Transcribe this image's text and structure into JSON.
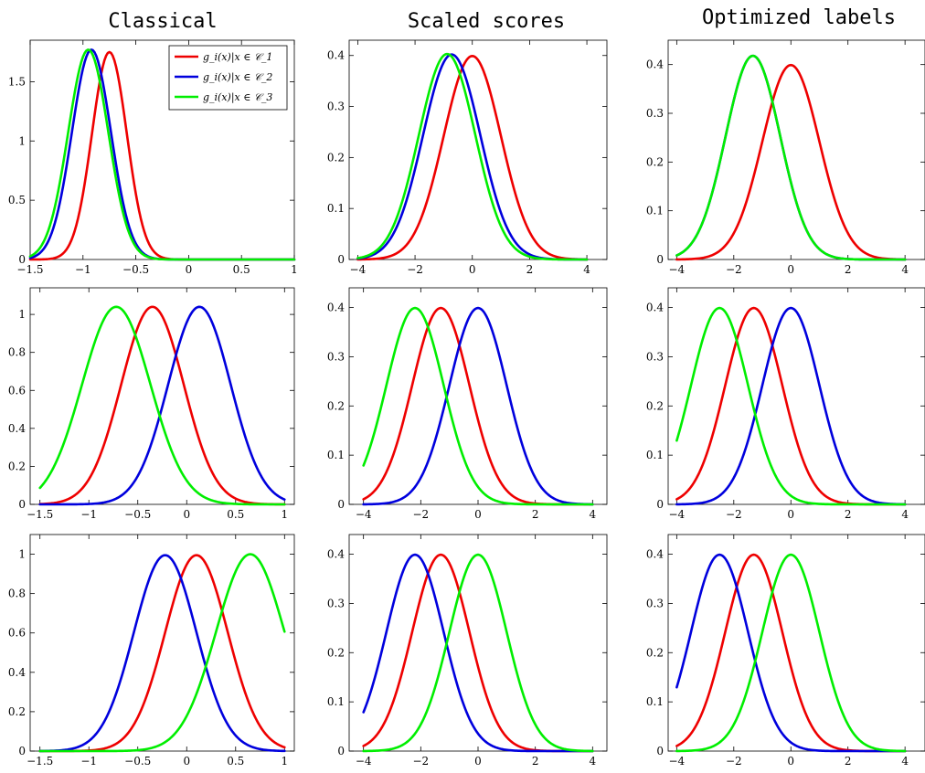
{
  "columns": [
    "Classical",
    "Scaled scores",
    "Optimized labels"
  ],
  "colors": {
    "s1": "#ee0000",
    "s2": "#0000dd",
    "s3": "#00ee00"
  },
  "legend": {
    "placement": "top-right",
    "entries": [
      "g_i(x)|x ∈ 𝒞_1",
      "g_i(x)|x ∈ 𝒞_2",
      "g_i(x)|x ∈ 𝒞_3"
    ]
  },
  "chart_data": [
    {
      "type": "line",
      "row": 0,
      "col": 0,
      "xlim": [
        -1.5,
        1
      ],
      "ylim": [
        0,
        1.85
      ],
      "grid": false,
      "xticks": [
        -1.5,
        -1,
        -0.5,
        0,
        0.5,
        1
      ],
      "xtick_labels": [
        "−1.5",
        "−1",
        "−0.5",
        "0",
        "0.5",
        "1"
      ],
      "yticks": [
        0,
        0.5,
        1,
        1.5
      ],
      "ytick_labels": [
        "0",
        "0.5",
        "1",
        "1.5"
      ],
      "series": [
        {
          "color_key": "s1",
          "curve": "gaussian",
          "mean": -0.75,
          "sd": 0.165,
          "peak": 1.75
        },
        {
          "color_key": "s2",
          "curve": "gaussian",
          "mean": -0.92,
          "sd": 0.185,
          "peak": 1.77
        },
        {
          "color_key": "s3",
          "curve": "gaussian",
          "mean": -0.95,
          "sd": 0.19,
          "peak": 1.77
        }
      ]
    },
    {
      "type": "line",
      "row": 0,
      "col": 1,
      "xlim": [
        -4.3,
        4.7
      ],
      "ylim": [
        0,
        0.43
      ],
      "grid": false,
      "xticks": [
        -4,
        -2,
        0,
        2,
        4
      ],
      "xtick_labels": [
        "−4",
        "−2",
        "0",
        "2",
        "4"
      ],
      "yticks": [
        0,
        0.1,
        0.2,
        0.3,
        0.4
      ],
      "ytick_labels": [
        "0",
        "0.1",
        "0.2",
        "0.3",
        "0.4"
      ],
      "series": [
        {
          "color_key": "s1",
          "curve": "gaussian",
          "mean": 0,
          "sd": 1,
          "peak": 0.399
        },
        {
          "color_key": "s2",
          "curve": "gaussian",
          "mean": -0.72,
          "sd": 1,
          "peak": 0.402
        },
        {
          "color_key": "s3",
          "curve": "gaussian",
          "mean": -0.88,
          "sd": 0.985,
          "peak": 0.403
        }
      ]
    },
    {
      "type": "line",
      "row": 0,
      "col": 2,
      "xlim": [
        -4.3,
        4.7
      ],
      "ylim": [
        0,
        0.45
      ],
      "grid": false,
      "xticks": [
        -4,
        -2,
        0,
        2,
        4
      ],
      "xtick_labels": [
        "−4",
        "−2",
        "0",
        "2",
        "4"
      ],
      "yticks": [
        0,
        0.1,
        0.2,
        0.3,
        0.4
      ],
      "ytick_labels": [
        "0",
        "0.1",
        "0.2",
        "0.3",
        "0.4"
      ],
      "series": [
        {
          "color_key": "s1",
          "curve": "gaussian",
          "mean": 0,
          "sd": 1,
          "peak": 0.399
        },
        {
          "color_key": "s2",
          "curve": "gaussian",
          "mean": -1.33,
          "sd": 0.955,
          "peak": 0.418
        },
        {
          "color_key": "s3",
          "curve": "gaussian",
          "mean": -1.33,
          "sd": 0.955,
          "peak": 0.418
        }
      ]
    },
    {
      "type": "line",
      "row": 1,
      "col": 0,
      "xlim": [
        -1.6,
        1.1
      ],
      "ylim": [
        0,
        1.14
      ],
      "grid": false,
      "xticks": [
        -1.5,
        -1,
        -0.5,
        0,
        0.5,
        1
      ],
      "xtick_labels": [
        "−1.5",
        "−1",
        "−0.5",
        "0",
        "0.5",
        "1"
      ],
      "yticks": [
        0,
        0.2,
        0.4,
        0.6,
        0.8,
        1
      ],
      "ytick_labels": [
        "0",
        "0.2",
        "0.4",
        "0.6",
        "0.8",
        "1"
      ],
      "series": [
        {
          "color_key": "s1",
          "curve": "gaussian",
          "mean": -0.35,
          "sd": 0.32,
          "peak": 1.04
        },
        {
          "color_key": "s2",
          "curve": "gaussian",
          "mean": 0.13,
          "sd": 0.32,
          "peak": 1.04
        },
        {
          "color_key": "s3",
          "curve": "gaussian",
          "mean": -0.72,
          "sd": 0.35,
          "peak": 1.04
        }
      ]
    },
    {
      "type": "line",
      "row": 1,
      "col": 1,
      "xlim": [
        -4.5,
        4.5
      ],
      "ylim": [
        0,
        0.44
      ],
      "grid": false,
      "xticks": [
        -4,
        -2,
        0,
        2,
        4
      ],
      "xtick_labels": [
        "−4",
        "−2",
        "0",
        "2",
        "4"
      ],
      "yticks": [
        0,
        0.1,
        0.2,
        0.3,
        0.4
      ],
      "ytick_labels": [
        "0",
        "0.1",
        "0.2",
        "0.3",
        "0.4"
      ],
      "series": [
        {
          "color_key": "s1",
          "curve": "gaussian",
          "mean": -1.3,
          "sd": 1,
          "peak": 0.399
        },
        {
          "color_key": "s2",
          "curve": "gaussian",
          "mean": 0,
          "sd": 1,
          "peak": 0.399
        },
        {
          "color_key": "s3",
          "curve": "gaussian",
          "mean": -2.2,
          "sd": 1,
          "peak": 0.399
        }
      ]
    },
    {
      "type": "line",
      "row": 1,
      "col": 2,
      "xlim": [
        -4.3,
        4.7
      ],
      "ylim": [
        0,
        0.44
      ],
      "grid": false,
      "xticks": [
        -4,
        -2,
        0,
        2,
        4
      ],
      "xtick_labels": [
        "−4",
        "−2",
        "0",
        "2",
        "4"
      ],
      "yticks": [
        0,
        0.1,
        0.2,
        0.3,
        0.4
      ],
      "ytick_labels": [
        "0",
        "0.1",
        "0.2",
        "0.3",
        "0.4"
      ],
      "series": [
        {
          "color_key": "s1",
          "curve": "gaussian",
          "mean": -1.3,
          "sd": 1,
          "peak": 0.399
        },
        {
          "color_key": "s2",
          "curve": "gaussian",
          "mean": 0,
          "sd": 1,
          "peak": 0.399
        },
        {
          "color_key": "s3",
          "curve": "gaussian",
          "mean": -2.5,
          "sd": 1,
          "peak": 0.399
        }
      ]
    },
    {
      "type": "line",
      "row": 2,
      "col": 0,
      "xlim": [
        -1.6,
        1.1
      ],
      "ylim": [
        0,
        1.1
      ],
      "grid": false,
      "xticks": [
        -1.5,
        -1,
        -0.5,
        0,
        0.5,
        1
      ],
      "xtick_labels": [
        "−1.5",
        "−1",
        "−0.5",
        "0",
        "0.5",
        "1"
      ],
      "yticks": [
        0,
        0.2,
        0.4,
        0.6,
        0.8,
        1
      ],
      "ytick_labels": [
        "0",
        "0.2",
        "0.4",
        "0.6",
        "0.8",
        "1"
      ],
      "series": [
        {
          "color_key": "s1",
          "curve": "gaussian",
          "mean": 0.1,
          "sd": 0.32,
          "peak": 0.995
        },
        {
          "color_key": "s2",
          "curve": "gaussian",
          "mean": -0.22,
          "sd": 0.32,
          "peak": 0.995
        },
        {
          "color_key": "s3",
          "curve": "gaussian",
          "mean": 0.65,
          "sd": 0.35,
          "peak": 1.0
        }
      ]
    },
    {
      "type": "line",
      "row": 2,
      "col": 1,
      "xlim": [
        -4.5,
        4.5
      ],
      "ylim": [
        0,
        0.44
      ],
      "grid": false,
      "xticks": [
        -4,
        -2,
        0,
        2,
        4
      ],
      "xtick_labels": [
        "−4",
        "−2",
        "0",
        "2",
        "4"
      ],
      "yticks": [
        0,
        0.1,
        0.2,
        0.3,
        0.4
      ],
      "ytick_labels": [
        "0",
        "0.1",
        "0.2",
        "0.3",
        "0.4"
      ],
      "series": [
        {
          "color_key": "s1",
          "curve": "gaussian",
          "mean": -1.3,
          "sd": 1,
          "peak": 0.399
        },
        {
          "color_key": "s2",
          "curve": "gaussian",
          "mean": -2.2,
          "sd": 1,
          "peak": 0.399
        },
        {
          "color_key": "s3",
          "curve": "gaussian",
          "mean": 0,
          "sd": 1,
          "peak": 0.399
        }
      ]
    },
    {
      "type": "line",
      "row": 2,
      "col": 2,
      "xlim": [
        -4.3,
        4.7
      ],
      "ylim": [
        0,
        0.44
      ],
      "grid": false,
      "xticks": [
        -4,
        -2,
        0,
        2,
        4
      ],
      "xtick_labels": [
        "−4",
        "−2",
        "0",
        "2",
        "4"
      ],
      "yticks": [
        0,
        0.1,
        0.2,
        0.3,
        0.4
      ],
      "ytick_labels": [
        "0",
        "0.1",
        "0.2",
        "0.3",
        "0.4"
      ],
      "series": [
        {
          "color_key": "s1",
          "curve": "gaussian",
          "mean": -1.3,
          "sd": 1,
          "peak": 0.399
        },
        {
          "color_key": "s2",
          "curve": "gaussian",
          "mean": -2.5,
          "sd": 1,
          "peak": 0.399
        },
        {
          "color_key": "s3",
          "curve": "gaussian",
          "mean": 0,
          "sd": 1,
          "peak": 0.399
        }
      ]
    }
  ]
}
